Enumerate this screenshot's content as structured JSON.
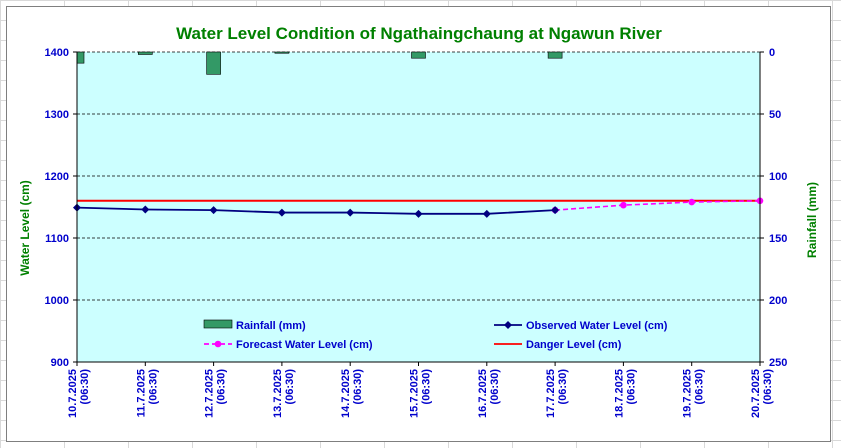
{
  "chart_data": {
    "type": "line",
    "title": "Water Level Condition of  Ngathaingchaung at Ngawun River",
    "ylabel": "Water Level (cm)",
    "y2label": "Rainfall (mm)",
    "ylim": [
      900,
      1400
    ],
    "y2lim": [
      0,
      250
    ],
    "y2_reversed": true,
    "yticks": [
      "900",
      "1000",
      "1100",
      "1200",
      "1300",
      "1400"
    ],
    "y2ticks": [
      "0",
      "50",
      "100",
      "150",
      "200",
      "250"
    ],
    "categories": [
      [
        "10.7.2025",
        "(06:30)"
      ],
      [
        "11.7.2025",
        "(06:30)"
      ],
      [
        "12.7.2025",
        "(06:30)"
      ],
      [
        "13.7.2025",
        "(06:30)"
      ],
      [
        "14.7.2025",
        "(06:30)"
      ],
      [
        "15.7.2025",
        "(06:30)"
      ],
      [
        "16.7.2025",
        "(06:30)"
      ],
      [
        "17.7.2025",
        "(06:30)"
      ],
      [
        "18.7.2025",
        "(06:30)"
      ],
      [
        "19.7.2025",
        "(06:30)"
      ],
      [
        "20.7.2025",
        "(06:30)"
      ]
    ],
    "grid": true,
    "background": "#ccffff",
    "legend_placement": "bottom",
    "series": [
      {
        "name": "Rainfall (mm)",
        "type": "bar",
        "axis": "right",
        "color": "#339966",
        "values": [
          9,
          2,
          18,
          1,
          null,
          5,
          null,
          5,
          null,
          null,
          null
        ]
      },
      {
        "name": "Observed Water Level (cm)",
        "type": "line",
        "color": "#000080",
        "marker": "diamond",
        "values": [
          1149,
          1146,
          1145,
          1141,
          1141,
          1139,
          1139,
          1145,
          null,
          null,
          null
        ]
      },
      {
        "name": "Forecast Water Level (cm)",
        "type": "line",
        "color": "#ff00ff",
        "dash": true,
        "marker": "circle",
        "values": [
          null,
          null,
          null,
          null,
          null,
          null,
          null,
          1145,
          1153,
          1158,
          1160
        ]
      },
      {
        "name": "Danger Level (cm)",
        "type": "line",
        "color": "#ff0000",
        "values": [
          1160,
          1160,
          1160,
          1160,
          1160,
          1160,
          1160,
          1160,
          1160,
          1160,
          1160
        ]
      }
    ]
  }
}
